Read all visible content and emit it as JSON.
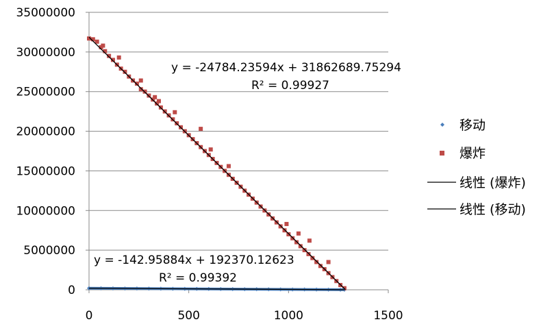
{
  "chart_data": {
    "type": "scatter",
    "xlim": [
      0,
      1500
    ],
    "ylim": [
      0,
      35000000
    ],
    "x_ticks": [
      0,
      500,
      1000,
      1500
    ],
    "y_ticks": [
      0,
      5000000,
      10000000,
      15000000,
      20000000,
      25000000,
      30000000,
      35000000
    ],
    "x_tick_labels": [
      "0",
      "500",
      "1000",
      "1500"
    ],
    "y_tick_labels": [
      "0",
      "5000000",
      "10000000",
      "15000000",
      "20000000",
      "25000000",
      "30000000",
      "35000000"
    ],
    "grid": "horizontal",
    "legend_position": "right",
    "series": [
      {
        "name": "移动",
        "marker": "diamond",
        "color": "#4a7ebb",
        "x_range": [
          0,
          1280
        ],
        "trend_slope": -142.95884,
        "trend_intercept": 192370.12623,
        "points": [
          [
            0,
            192000
          ],
          [
            60,
            184000
          ],
          [
            120,
            175000
          ],
          [
            180,
            166000
          ],
          [
            240,
            158000
          ],
          [
            300,
            149000
          ],
          [
            360,
            141000
          ],
          [
            420,
            132000
          ],
          [
            480,
            124000
          ],
          [
            540,
            115000
          ],
          [
            600,
            107000
          ],
          [
            660,
            98000
          ],
          [
            720,
            89000
          ],
          [
            780,
            81000
          ],
          [
            840,
            72000
          ],
          [
            900,
            64000
          ],
          [
            960,
            55000
          ],
          [
            1020,
            46000
          ],
          [
            1080,
            38000
          ],
          [
            1140,
            29000
          ],
          [
            1200,
            21000
          ],
          [
            1260,
            12000
          ],
          [
            1280,
            9000
          ]
        ]
      },
      {
        "name": "爆炸",
        "marker": "square",
        "color": "#be4b48",
        "x_range": [
          0,
          1285
        ],
        "trend_slope": -24784.23594,
        "trend_intercept": 31862689.75294,
        "points": [
          [
            0,
            31700000
          ],
          [
            20,
            31600000
          ],
          [
            40,
            31300000
          ],
          [
            60,
            30600000
          ],
          [
            80,
            30100000
          ],
          [
            100,
            29500000
          ],
          [
            120,
            29000000
          ],
          [
            140,
            28400000
          ],
          [
            160,
            27900000
          ],
          [
            180,
            27500000
          ],
          [
            200,
            26900000
          ],
          [
            220,
            26400000
          ],
          [
            240,
            26000000
          ],
          [
            260,
            25300000
          ],
          [
            280,
            25000000
          ],
          [
            300,
            24500000
          ],
          [
            320,
            24000000
          ],
          [
            340,
            23500000
          ],
          [
            360,
            23000000
          ],
          [
            380,
            22500000
          ],
          [
            400,
            22000000
          ],
          [
            420,
            21500000
          ],
          [
            440,
            21000000
          ],
          [
            460,
            20500000
          ],
          [
            480,
            20000000
          ],
          [
            500,
            19500000
          ],
          [
            520,
            19000000
          ],
          [
            540,
            18500000
          ],
          [
            560,
            18000000
          ],
          [
            580,
            17500000
          ],
          [
            600,
            17000000
          ],
          [
            620,
            16500000
          ],
          [
            640,
            16000000
          ],
          [
            660,
            15500000
          ],
          [
            680,
            15000000
          ],
          [
            700,
            14500000
          ],
          [
            720,
            14000000
          ],
          [
            740,
            13500000
          ],
          [
            760,
            13000000
          ],
          [
            780,
            12500000
          ],
          [
            800,
            12000000
          ],
          [
            820,
            11500000
          ],
          [
            840,
            11000000
          ],
          [
            860,
            10500000
          ],
          [
            880,
            10000000
          ],
          [
            900,
            9500000
          ],
          [
            920,
            9000000
          ],
          [
            940,
            8500000
          ],
          [
            960,
            8000000
          ],
          [
            980,
            7500000
          ],
          [
            1000,
            7000000
          ],
          [
            1020,
            6500000
          ],
          [
            1040,
            6000000
          ],
          [
            1060,
            5500000
          ],
          [
            1080,
            5000000
          ],
          [
            1100,
            4500000
          ],
          [
            1120,
            4000000
          ],
          [
            1140,
            3500000
          ],
          [
            1160,
            3000000
          ],
          [
            1180,
            2600000
          ],
          [
            1200,
            2100000
          ],
          [
            1220,
            1600000
          ],
          [
            1240,
            1100000
          ],
          [
            1260,
            600000
          ],
          [
            1280,
            200000
          ],
          [
            70,
            30800000
          ],
          [
            150,
            29300000
          ],
          [
            260,
            26400000
          ],
          [
            350,
            23800000
          ],
          [
            430,
            22400000
          ],
          [
            560,
            20300000
          ],
          [
            700,
            15600000
          ],
          [
            1050,
            7100000
          ],
          [
            1105,
            6200000
          ],
          [
            1200,
            3500000
          ],
          [
            990,
            8300000
          ],
          [
            330,
            24300000
          ],
          [
            610,
            17700000
          ]
        ]
      }
    ],
    "trendlines": [
      {
        "name": "线性 (爆炸)",
        "series": "爆炸",
        "equation": "y = -24784.23594x + 31862689.75294",
        "r2": "R² = 0.99927"
      },
      {
        "name": "线性 (移动)",
        "series": "移动",
        "equation": "y = -142.95884x + 192370.12623",
        "r2": "R² = 0.99392"
      }
    ]
  },
  "legend": {
    "items": [
      {
        "label": "移动",
        "marker": "diamond",
        "color": "#4a7ebb"
      },
      {
        "label": "爆炸",
        "marker": "square",
        "color": "#be4b48"
      },
      {
        "label": "线性 (爆炸)",
        "marker": "line",
        "color": "#000000"
      },
      {
        "label": "线性 (移动)",
        "marker": "line",
        "color": "#000000"
      }
    ]
  },
  "colors": {
    "gridline": "#898989",
    "axis": "#898989",
    "trendline": "#000000"
  }
}
